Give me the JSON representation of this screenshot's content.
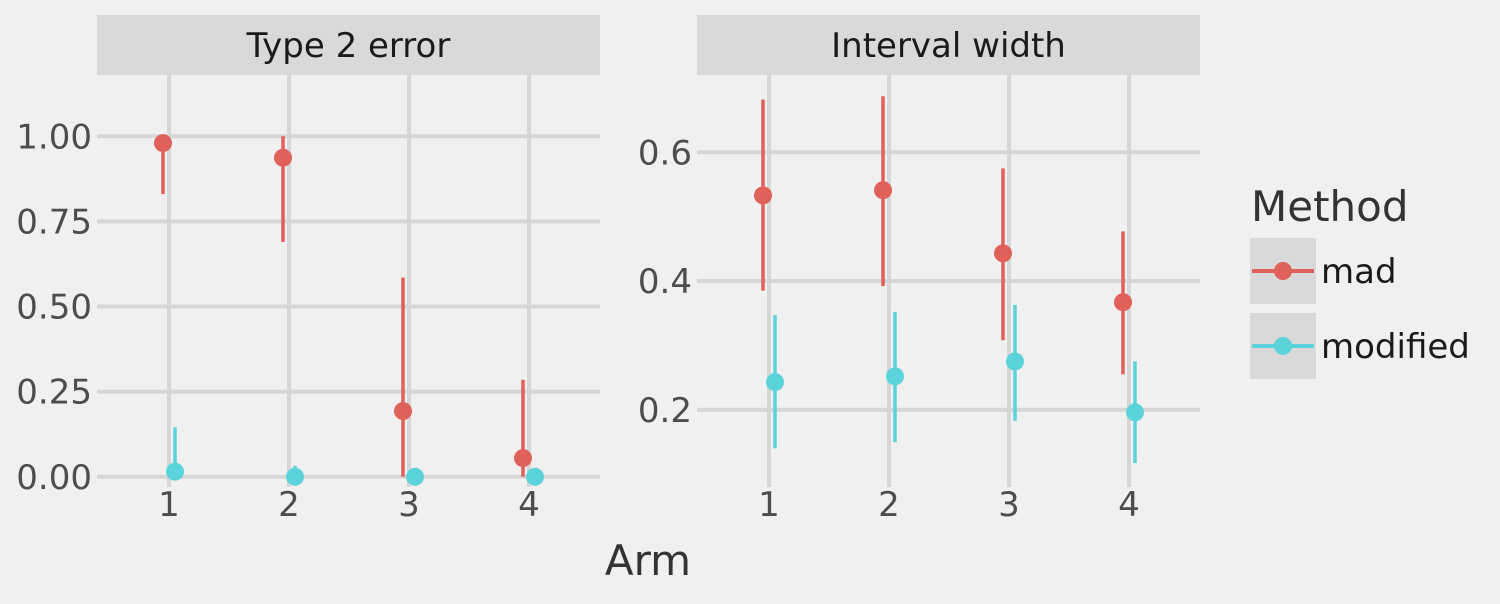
{
  "chart_data": {
    "type": "scatter",
    "xlabel": "Arm",
    "legend": {
      "title": "Method",
      "placement": "right",
      "entries": [
        "mad",
        "modified"
      ]
    },
    "colors": {
      "mad": "#e0605a",
      "modified": "#5bd3db",
      "panel_background": "#f0f0f0",
      "strip_background": "#d9d9d9",
      "grid": "#d6d6d6",
      "tick_text": "#4d4d4d",
      "title_text": "#1a1a1a"
    },
    "grid": true,
    "panels": [
      {
        "title": "Type 2 error",
        "x_categories": [
          "1",
          "2",
          "3",
          "4"
        ],
        "ylim": [
          -0.03,
          1.18
        ],
        "y_ticks": [
          0.0,
          0.25,
          0.5,
          0.75,
          1.0
        ],
        "y_tick_labels": [
          "0.00",
          "0.25",
          "0.50",
          "0.75",
          "1.00"
        ],
        "series": [
          {
            "name": "mad",
            "x": [
              1,
              2,
              3,
              4
            ],
            "y": [
              0.98,
              0.937,
              0.193,
              0.055
            ],
            "lower": [
              0.83,
              0.69,
              0.0,
              0.0
            ],
            "upper": [
              1.0,
              1.0,
              0.585,
              0.285
            ]
          },
          {
            "name": "modified",
            "x": [
              1,
              2,
              3,
              4
            ],
            "y": [
              0.015,
              0.0,
              0.0,
              0.0
            ],
            "lower": [
              0.0,
              0.0,
              0.0,
              0.0
            ],
            "upper": [
              0.145,
              0.032,
              0.0,
              0.0
            ]
          }
        ]
      },
      {
        "title": "Interval width",
        "x_categories": [
          "1",
          "2",
          "3",
          "4"
        ],
        "ylim": [
          0.08,
          0.72
        ],
        "y_ticks": [
          0.2,
          0.4,
          0.6
        ],
        "y_tick_labels": [
          "0.2",
          "0.4",
          "0.6"
        ],
        "series": [
          {
            "name": "mad",
            "x": [
              1,
              2,
              3,
              4
            ],
            "y": [
              0.533,
              0.541,
              0.443,
              0.367
            ],
            "lower": [
              0.385,
              0.392,
              0.308,
              0.255
            ],
            "upper": [
              0.682,
              0.687,
              0.575,
              0.477
            ]
          },
          {
            "name": "modified",
            "x": [
              1,
              2,
              3,
              4
            ],
            "y": [
              0.243,
              0.252,
              0.275,
              0.196
            ],
            "lower": [
              0.14,
              0.15,
              0.183,
              0.117
            ],
            "upper": [
              0.347,
              0.352,
              0.363,
              0.275
            ]
          }
        ]
      }
    ]
  }
}
